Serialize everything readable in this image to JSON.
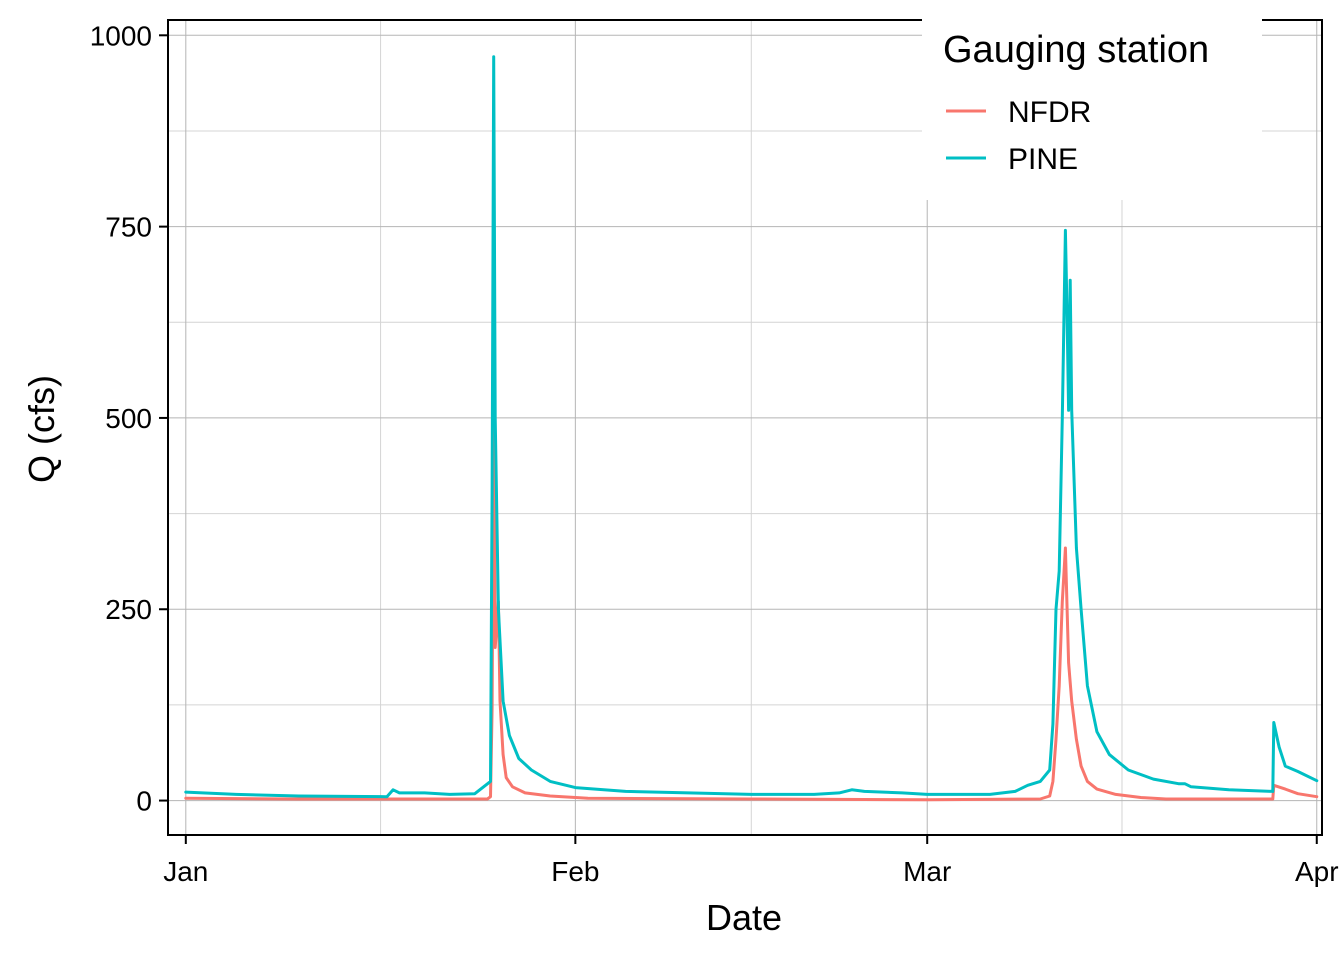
{
  "chart_data": {
    "type": "line",
    "title": "",
    "xlabel": "Date",
    "ylabel": "Q (cfs)",
    "x_unit": "date",
    "xlim": [
      "2000-12-30T14:00",
      "2001-04-01T10:00"
    ],
    "ylim": [
      -45,
      1020
    ],
    "x_ticks": [
      {
        "date": "2001-01-01",
        "label": "Jan"
      },
      {
        "date": "2001-02-01",
        "label": "Feb"
      },
      {
        "date": "2001-03-01",
        "label": "Mar"
      },
      {
        "date": "2001-04-01",
        "label": "Apr"
      }
    ],
    "x_minor_ticks": [
      "2001-01-16T12:00",
      "2001-02-15",
      "2001-03-16T12:00"
    ],
    "y_ticks": [
      0,
      250,
      500,
      750,
      1000
    ],
    "y_minor_ticks": [
      125,
      375,
      625,
      875
    ],
    "grid": true,
    "legend": {
      "title": "Gauging station",
      "position": "top-right"
    },
    "series": [
      {
        "name": "NFDR",
        "color": "#F8766D",
        "points": [
          [
            "2001-01-01T00:00",
            3
          ],
          [
            "2001-01-10T00:00",
            2
          ],
          [
            "2001-01-20T00:00",
            2
          ],
          [
            "2001-01-25T00:00",
            2
          ],
          [
            "2001-01-25T06:00",
            5
          ],
          [
            "2001-01-25T09:00",
            120
          ],
          [
            "2001-01-25T12:00",
            540
          ],
          [
            "2001-01-25T15:00",
            200
          ],
          [
            "2001-01-25T21:00",
            260
          ],
          [
            "2001-01-26T00:00",
            130
          ],
          [
            "2001-01-26T06:00",
            60
          ],
          [
            "2001-01-26T12:00",
            30
          ],
          [
            "2001-01-27T00:00",
            18
          ],
          [
            "2001-01-28T00:00",
            10
          ],
          [
            "2001-01-30T00:00",
            6
          ],
          [
            "2001-02-01T00:00",
            4
          ],
          [
            "2001-02-02T00:00",
            3
          ],
          [
            "2001-02-15T00:00",
            2
          ],
          [
            "2001-03-01T00:00",
            1
          ],
          [
            "2001-03-10T00:00",
            2
          ],
          [
            "2001-03-10T18:00",
            6
          ],
          [
            "2001-03-11T00:00",
            25
          ],
          [
            "2001-03-11T06:00",
            80
          ],
          [
            "2001-03-11T12:00",
            150
          ],
          [
            "2001-03-11T18:00",
            260
          ],
          [
            "2001-03-12T00:00",
            330
          ],
          [
            "2001-03-12T06:00",
            180
          ],
          [
            "2001-03-12T12:00",
            130
          ],
          [
            "2001-03-12T21:00",
            80
          ],
          [
            "2001-03-13T06:00",
            45
          ],
          [
            "2001-03-13T18:00",
            25
          ],
          [
            "2001-03-14T12:00",
            15
          ],
          [
            "2001-03-16T00:00",
            8
          ],
          [
            "2001-03-18T00:00",
            4
          ],
          [
            "2001-03-20T00:00",
            2
          ],
          [
            "2001-03-27T00:00",
            2
          ],
          [
            "2001-03-28T12:00",
            2
          ],
          [
            "2001-03-28T14:00",
            20
          ],
          [
            "2001-03-29T12:00",
            15
          ],
          [
            "2001-03-30T12:00",
            9
          ],
          [
            "2001-04-01T00:00",
            5
          ]
        ]
      },
      {
        "name": "PINE",
        "color": "#00BFC4",
        "points": [
          [
            "2001-01-01T00:00",
            11
          ],
          [
            "2001-01-05T00:00",
            8
          ],
          [
            "2001-01-10T00:00",
            6
          ],
          [
            "2001-01-17T00:00",
            5
          ],
          [
            "2001-01-17T12:00",
            14
          ],
          [
            "2001-01-18T00:00",
            10
          ],
          [
            "2001-01-20T00:00",
            10
          ],
          [
            "2001-01-22T00:00",
            8
          ],
          [
            "2001-01-24T00:00",
            9
          ],
          [
            "2001-01-25T06:00",
            25
          ],
          [
            "2001-01-25T09:00",
            400
          ],
          [
            "2001-01-25T12:00",
            972
          ],
          [
            "2001-01-25T15:00",
            500
          ],
          [
            "2001-01-25T21:00",
            250
          ],
          [
            "2001-01-26T06:00",
            130
          ],
          [
            "2001-01-26T18:00",
            85
          ],
          [
            "2001-01-27T12:00",
            55
          ],
          [
            "2001-01-28T12:00",
            40
          ],
          [
            "2001-01-30T00:00",
            25
          ],
          [
            "2001-02-01T00:00",
            17
          ],
          [
            "2001-02-05T00:00",
            12
          ],
          [
            "2001-02-10T00:00",
            10
          ],
          [
            "2001-02-15T00:00",
            8
          ],
          [
            "2001-02-20T00:00",
            8
          ],
          [
            "2001-02-22T00:00",
            10
          ],
          [
            "2001-02-23T00:00",
            14
          ],
          [
            "2001-02-24T00:00",
            12
          ],
          [
            "2001-02-27T00:00",
            10
          ],
          [
            "2001-03-01T00:00",
            8
          ],
          [
            "2001-03-06T00:00",
            8
          ],
          [
            "2001-03-08T00:00",
            12
          ],
          [
            "2001-03-09T00:00",
            20
          ],
          [
            "2001-03-10T00:00",
            25
          ],
          [
            "2001-03-10T18:00",
            40
          ],
          [
            "2001-03-11T00:00",
            100
          ],
          [
            "2001-03-11T06:00",
            250
          ],
          [
            "2001-03-11T12:00",
            300
          ],
          [
            "2001-03-11T18:00",
            500
          ],
          [
            "2001-03-12T00:00",
            745
          ],
          [
            "2001-03-12T03:00",
            640
          ],
          [
            "2001-03-12T06:00",
            510
          ],
          [
            "2001-03-12T09:00",
            680
          ],
          [
            "2001-03-12T12:00",
            510
          ],
          [
            "2001-03-12T21:00",
            330
          ],
          [
            "2001-03-13T06:00",
            250
          ],
          [
            "2001-03-13T18:00",
            150
          ],
          [
            "2001-03-14T12:00",
            90
          ],
          [
            "2001-03-15T12:00",
            60
          ],
          [
            "2001-03-17T00:00",
            40
          ],
          [
            "2001-03-19T00:00",
            28
          ],
          [
            "2001-03-21T00:00",
            22
          ],
          [
            "2001-03-21T12:00",
            22
          ],
          [
            "2001-03-22T00:00",
            18
          ],
          [
            "2001-03-25T00:00",
            14
          ],
          [
            "2001-03-28T12:00",
            12
          ],
          [
            "2001-03-28T14:00",
            102
          ],
          [
            "2001-03-29T00:00",
            70
          ],
          [
            "2001-03-29T12:00",
            45
          ],
          [
            "2001-03-30T12:00",
            38
          ],
          [
            "2001-04-01T00:00",
            26
          ]
        ]
      }
    ]
  }
}
